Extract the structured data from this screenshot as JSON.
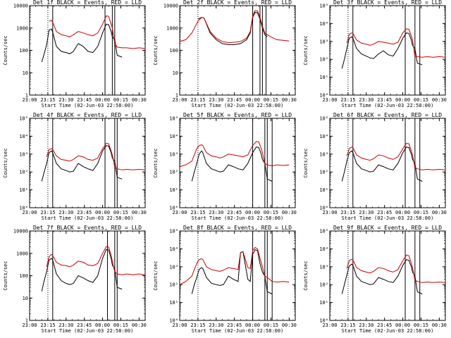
{
  "figure": {
    "time_labels": [
      "23:00",
      "23:15",
      "23:30",
      "23:45",
      "00:00",
      "00:15",
      "00:30"
    ],
    "xlabel": "Start Time (02-Jun-03 22:58:00)",
    "ylabel": "Counts/sec",
    "legend_text": "BLACK = Events, RED = LLD",
    "series_colors": {
      "events": "#000000",
      "lld": "#cc0000"
    }
  },
  "chart_data": [
    {
      "type": "line",
      "title": "Det 1f BLACK = Events, RED = LLD",
      "detector": "1f",
      "xlabel": "Start Time (02-Jun-03 22:58:00)",
      "ylabel": "Counts/sec",
      "xlim": [
        0,
        95
      ],
      "ylim_log10": [
        0,
        4
      ],
      "ytick_style": "plain",
      "ytick_labels": [
        "1",
        "10",
        "100",
        "1000",
        "10000"
      ],
      "dotted_lines": [
        15
      ],
      "solid_lines": [
        19,
        62,
        68,
        70
      ],
      "x": [
        5,
        8,
        10,
        12,
        14,
        16,
        18,
        19,
        22,
        26,
        30,
        33,
        36,
        40,
        44,
        48,
        52,
        56,
        60,
        63,
        65,
        67,
        68,
        70,
        72,
        76,
        80,
        85,
        90,
        95
      ],
      "series": [
        {
          "name": "Events",
          "values": [
            null,
            null,
            30,
            70,
            180,
            800,
            900,
            650,
            150,
            90,
            80,
            70,
            90,
            200,
            150,
            90,
            80,
            150,
            600,
            1500,
            1400,
            700,
            400,
            300,
            60,
            50,
            null,
            null,
            null,
            null
          ]
        },
        {
          "name": "LLD",
          "values": [
            null,
            null,
            null,
            null,
            null,
            2000,
            2200,
            1800,
            700,
            500,
            450,
            400,
            500,
            700,
            600,
            500,
            450,
            600,
            1500,
            3500,
            3300,
            1500,
            1000,
            200,
            140,
            130,
            130,
            120,
            130,
            120
          ]
        }
      ]
    },
    {
      "type": "line",
      "title": "Det 2f BLACK = Events, RED = LLD",
      "detector": "2f",
      "xlabel": "Start Time (02-Jun-03 22:58:00)",
      "ylabel": "Counts/sec",
      "xlim": [
        0,
        95
      ],
      "ylim_log10": [
        0,
        4
      ],
      "ytick_style": "plain",
      "ytick_labels": [
        "1",
        "10",
        "100",
        "1000",
        "10000"
      ],
      "dotted_lines": [
        15
      ],
      "solid_lines": [
        60,
        66,
        68,
        71
      ],
      "x": [
        0,
        5,
        10,
        15,
        18,
        20,
        25,
        30,
        35,
        40,
        45,
        50,
        55,
        58,
        60,
        62,
        64,
        66,
        68,
        70,
        72,
        75,
        80,
        85,
        90
      ],
      "series": [
        {
          "name": "Events",
          "values": [
            null,
            null,
            null,
            2500,
            3000,
            2800,
            600,
            300,
            200,
            180,
            180,
            200,
            300,
            600,
            3000,
            5000,
            4800,
            2500,
            1000,
            500,
            400,
            null,
            null,
            null,
            null
          ]
        },
        {
          "name": "LLD",
          "values": [
            250,
            300,
            600,
            2000,
            3000,
            2800,
            700,
            350,
            250,
            220,
            230,
            250,
            350,
            700,
            3500,
            6000,
            5800,
            3000,
            1200,
            600,
            500,
            400,
            300,
            280,
            260
          ]
        }
      ]
    },
    {
      "type": "line",
      "title": "Det 3f BLACK = Events, RED = LLD",
      "detector": "3f",
      "xlabel": "Start Time (02-Jun-03 22:58:00)",
      "ylabel": "Counts/sec",
      "xlim": [
        0,
        95
      ],
      "ylim_log10": [
        0,
        5
      ],
      "ytick_style": "power",
      "ytick_labels": [
        "10⁰",
        "10¹",
        "10²",
        "10³",
        "10⁴",
        "10⁵"
      ],
      "dotted_lines": [
        15
      ],
      "solid_lines": [
        19,
        62,
        70,
        74
      ],
      "x": [
        5,
        8,
        10,
        12,
        14,
        16,
        18,
        19,
        22,
        26,
        30,
        33,
        36,
        40,
        44,
        48,
        52,
        56,
        60,
        63,
        65,
        67,
        68,
        70,
        72,
        76,
        80,
        85,
        90,
        95
      ],
      "series": [
        {
          "name": "Events",
          "values": [
            null,
            null,
            30,
            100,
            400,
            1500,
            1800,
            1500,
            400,
            200,
            150,
            120,
            110,
            200,
            300,
            180,
            150,
            400,
            1500,
            3000,
            2800,
            1200,
            600,
            400,
            60,
            50,
            null,
            null,
            null,
            null
          ]
        },
        {
          "name": "LLD",
          "values": [
            null,
            null,
            null,
            null,
            800,
            2500,
            3000,
            2800,
            1200,
            800,
            700,
            600,
            700,
            1000,
            900,
            800,
            700,
            900,
            3000,
            5000,
            4800,
            2000,
            1200,
            150,
            140,
            130,
            140,
            130,
            140,
            130
          ]
        }
      ]
    },
    {
      "type": "line",
      "title": "Det 4f BLACK = Events, RED = LLD",
      "detector": "4f",
      "xlabel": "Start Time (02-Jun-03 22:58:00)",
      "ylabel": "Counts/sec",
      "xlim": [
        0,
        95
      ],
      "ylim_log10": [
        0,
        5
      ],
      "ytick_style": "power",
      "ytick_labels": [
        "10⁰",
        "10¹",
        "10²",
        "10³",
        "10⁴",
        "10⁵"
      ],
      "dotted_lines": [
        15
      ],
      "solid_lines": [
        19,
        62,
        70,
        72
      ],
      "x": [
        5,
        8,
        10,
        12,
        14,
        16,
        18,
        19,
        22,
        26,
        30,
        33,
        36,
        40,
        44,
        48,
        52,
        56,
        60,
        63,
        65,
        67,
        68,
        70,
        72,
        76,
        80,
        85,
        90,
        95
      ],
      "series": [
        {
          "name": "Events",
          "values": [
            null,
            null,
            30,
            100,
            300,
            1200,
            1500,
            1200,
            300,
            150,
            120,
            100,
            110,
            300,
            200,
            150,
            120,
            300,
            1500,
            3000,
            2800,
            1200,
            600,
            400,
            50,
            40,
            null,
            null,
            null,
            null
          ]
        },
        {
          "name": "LLD",
          "values": [
            null,
            null,
            null,
            null,
            700,
            1800,
            2000,
            1800,
            800,
            500,
            450,
            400,
            500,
            800,
            700,
            500,
            450,
            600,
            2000,
            4000,
            3800,
            1500,
            900,
            200,
            150,
            130,
            140,
            130,
            140,
            130
          ]
        }
      ]
    },
    {
      "type": "line",
      "title": "Det 5f BLACK = Events, RED = LLD",
      "detector": "5f",
      "xlabel": "Start Time (02-Jun-03 22:58:00)",
      "ylabel": "Counts/sec",
      "xlim": [
        0,
        95
      ],
      "ylim_log10": [
        0,
        5
      ],
      "ytick_style": "power",
      "ytick_labels": [
        "10⁰",
        "10¹",
        "10²",
        "10³",
        "10⁴",
        "10⁵"
      ],
      "dotted_lines": [
        15
      ],
      "solid_lines": [
        60,
        70,
        72,
        76
      ],
      "x": [
        0,
        5,
        10,
        12,
        14,
        16,
        18,
        19,
        22,
        26,
        30,
        33,
        36,
        40,
        44,
        48,
        52,
        56,
        60,
        63,
        65,
        67,
        68,
        70,
        72,
        76,
        80,
        85,
        90
      ],
      "series": [
        {
          "name": "Events",
          "values": [
            null,
            null,
            30,
            100,
            300,
            1000,
            1500,
            1200,
            300,
            150,
            120,
            100,
            110,
            250,
            200,
            150,
            130,
            300,
            1200,
            2500,
            2300,
            1000,
            500,
            300,
            40,
            30,
            null,
            null,
            null
          ]
        },
        {
          "name": "LLD",
          "values": [
            200,
            250,
            400,
            900,
            2000,
            3000,
            3300,
            3000,
            1200,
            800,
            700,
            600,
            700,
            1000,
            900,
            800,
            700,
            900,
            3000,
            5000,
            4800,
            2000,
            1200,
            300,
            250,
            220,
            250,
            230,
            250
          ]
        }
      ]
    },
    {
      "type": "line",
      "title": "Det 6f BLACK = Events, RED = LLD",
      "detector": "6f",
      "xlabel": "Start Time (02-Jun-03 22:58:00)",
      "ylabel": "Counts/sec",
      "xlim": [
        0,
        95
      ],
      "ylim_log10": [
        0,
        5
      ],
      "ytick_style": "power",
      "ytick_labels": [
        "10⁰",
        "10¹",
        "10²",
        "10³",
        "10⁴",
        "10⁵"
      ],
      "dotted_lines": [
        15
      ],
      "solid_lines": [
        19,
        62,
        70,
        74
      ],
      "x": [
        5,
        8,
        10,
        12,
        14,
        16,
        18,
        19,
        22,
        26,
        30,
        33,
        36,
        40,
        44,
        48,
        52,
        56,
        60,
        63,
        65,
        67,
        68,
        70,
        72,
        76,
        80,
        85,
        90,
        95
      ],
      "series": [
        {
          "name": "Events",
          "values": [
            null,
            null,
            30,
            100,
            400,
            1200,
            1500,
            1200,
            300,
            150,
            120,
            100,
            110,
            250,
            200,
            150,
            130,
            300,
            1200,
            2500,
            2300,
            1000,
            500,
            300,
            40,
            30,
            null,
            null,
            null,
            null
          ]
        },
        {
          "name": "LLD",
          "values": [
            null,
            null,
            null,
            null,
            800,
            2000,
            2500,
            2300,
            900,
            600,
            500,
            450,
            550,
            900,
            800,
            600,
            500,
            700,
            2000,
            4000,
            3800,
            1500,
            900,
            180,
            150,
            130,
            140,
            130,
            140,
            130
          ]
        }
      ]
    },
    {
      "type": "line",
      "title": "Det 7f BLACK = Events, RED = LLD",
      "detector": "7f",
      "xlabel": "Start Time (02-Jun-03 22:58:00)",
      "ylabel": "Counts/sec",
      "xlim": [
        0,
        95
      ],
      "ylim_log10": [
        0,
        4
      ],
      "ytick_style": "plain",
      "ytick_labels": [
        "1",
        "10",
        "100",
        "1000",
        "10000"
      ],
      "dotted_lines": [
        15
      ],
      "solid_lines": [
        19,
        64,
        70,
        72
      ],
      "x": [
        5,
        8,
        10,
        12,
        14,
        16,
        18,
        19,
        22,
        26,
        30,
        33,
        36,
        40,
        44,
        48,
        52,
        56,
        60,
        63,
        65,
        67,
        68,
        70,
        72,
        76,
        80,
        85,
        90,
        95
      ],
      "series": [
        {
          "name": "Events",
          "values": [
            null,
            null,
            20,
            60,
            150,
            500,
            600,
            500,
            120,
            60,
            45,
            40,
            45,
            100,
            80,
            60,
            50,
            100,
            600,
            1500,
            1400,
            600,
            300,
            200,
            30,
            25,
            null,
            null,
            null,
            null
          ]
        },
        {
          "name": "LLD",
          "values": [
            null,
            null,
            null,
            null,
            250,
            700,
            900,
            800,
            400,
            300,
            280,
            250,
            300,
            450,
            400,
            300,
            280,
            350,
            1000,
            2000,
            1900,
            800,
            450,
            150,
            120,
            110,
            120,
            110,
            120,
            110
          ]
        }
      ]
    },
    {
      "type": "line",
      "title": "Det 8f BLACK = Events, RED = LLD",
      "detector": "8f",
      "xlabel": "Start Time (02-Jun-03 22:58:00)",
      "ylabel": "Counts/sec",
      "xlim": [
        0,
        95
      ],
      "ylim_log10": [
        0,
        5
      ],
      "ytick_style": "power",
      "ytick_labels": [
        "10⁰",
        "10¹",
        "10²",
        "10³",
        "10⁴",
        "10⁵"
      ],
      "dotted_lines": [
        15
      ],
      "solid_lines": [
        60,
        70,
        72,
        76
      ],
      "x": [
        0,
        5,
        10,
        12,
        14,
        16,
        18,
        19,
        22,
        26,
        30,
        33,
        36,
        40,
        44,
        48,
        50,
        52,
        56,
        58,
        60,
        62,
        64,
        66,
        68,
        70,
        72,
        76,
        80,
        85,
        90
      ],
      "series": [
        {
          "name": "Events",
          "values": [
            null,
            null,
            30,
            100,
            250,
            700,
            900,
            800,
            250,
            120,
            100,
            90,
            100,
            300,
            200,
            150,
            6000,
            7000,
            200,
            150,
            5000,
            9000,
            8000,
            1500,
            500,
            300,
            40,
            30,
            null,
            null,
            null
          ]
        },
        {
          "name": "LLD",
          "values": [
            100,
            150,
            300,
            700,
            1500,
            2500,
            2800,
            2500,
            1000,
            700,
            600,
            550,
            650,
            900,
            800,
            700,
            6000,
            7000,
            900,
            800,
            8000,
            12000,
            10000,
            3000,
            1000,
            300,
            250,
            150,
            140,
            150,
            140
          ]
        }
      ]
    },
    {
      "type": "line",
      "title": "Det 9f BLACK = Events, RED = LLD",
      "detector": "9f",
      "xlabel": "Start Time (02-Jun-03 22:58:00)",
      "ylabel": "Counts/sec",
      "xlim": [
        0,
        95
      ],
      "ylim_log10": [
        0,
        5
      ],
      "ytick_style": "power",
      "ytick_labels": [
        "10⁰",
        "10¹",
        "10²",
        "10³",
        "10⁴",
        "10⁵"
      ],
      "dotted_lines": [
        15
      ],
      "solid_lines": [
        19,
        62,
        70,
        74
      ],
      "x": [
        5,
        8,
        10,
        12,
        14,
        16,
        18,
        19,
        22,
        26,
        30,
        33,
        36,
        40,
        44,
        48,
        52,
        56,
        60,
        63,
        65,
        67,
        68,
        70,
        72,
        76,
        80,
        85,
        90,
        95
      ],
      "series": [
        {
          "name": "Events",
          "values": [
            null,
            null,
            30,
            100,
            350,
            1100,
            1400,
            1200,
            300,
            150,
            120,
            100,
            110,
            250,
            200,
            150,
            130,
            300,
            1200,
            2500,
            2300,
            1000,
            500,
            300,
            40,
            30,
            null,
            null,
            null,
            null
          ]
        },
        {
          "name": "LLD",
          "values": [
            null,
            null,
            null,
            null,
            800,
            2200,
            2600,
            2400,
            900,
            600,
            500,
            450,
            550,
            900,
            800,
            600,
            500,
            700,
            2200,
            4500,
            4200,
            1600,
            900,
            180,
            150,
            130,
            140,
            130,
            140,
            130
          ]
        }
      ]
    }
  ]
}
